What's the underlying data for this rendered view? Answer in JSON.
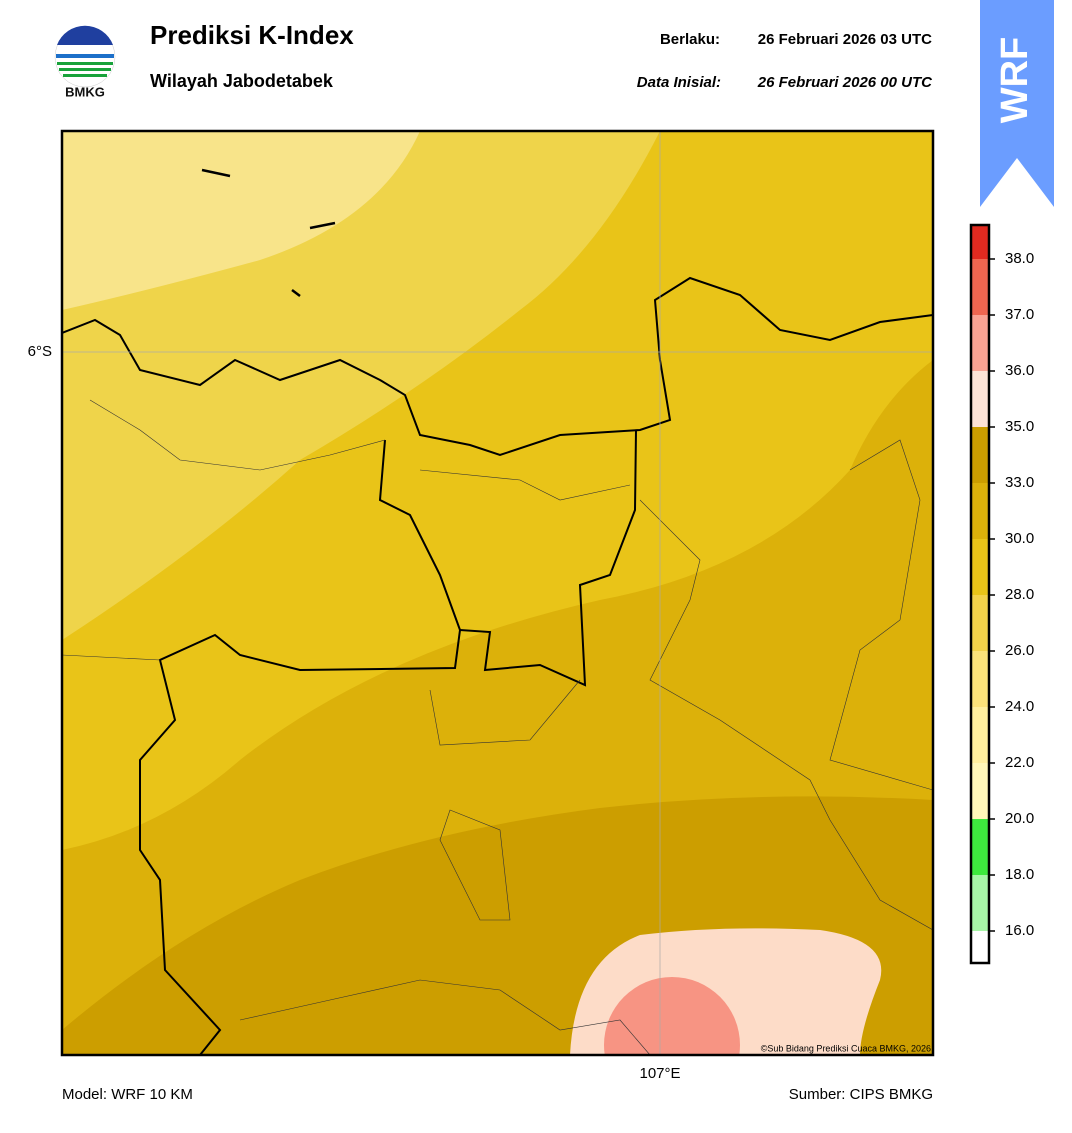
{
  "header": {
    "title": "Prediksi K-Index",
    "subtitle": "Wilayah Jabodetabek",
    "logo_text": "BMKG",
    "valid_label": "Berlaku:",
    "valid_time": "26 Februari 2026 03 UTC",
    "init_label": "Data Inisial:",
    "init_time": "26 Februari 2026 00 UTC",
    "badge": "WRF"
  },
  "map": {
    "lat_label": "6°S",
    "lon_label": "107°E",
    "copyright": "©Sub Bidang Prediksi Cuaca BMKG, 2026"
  },
  "colorbar": {
    "ticks": [
      {
        "value": 16,
        "label": "16.0"
      },
      {
        "value": 18,
        "label": "18.0"
      },
      {
        "value": 20,
        "label": "20.0"
      },
      {
        "value": 22,
        "label": "22.0"
      },
      {
        "value": 24,
        "label": "24.0"
      },
      {
        "value": 26,
        "label": "26.0"
      },
      {
        "value": 28,
        "label": "28.0"
      },
      {
        "value": 30,
        "label": "30.0"
      },
      {
        "value": 33,
        "label": "33.0"
      },
      {
        "value": 35,
        "label": "35.0"
      },
      {
        "value": 36,
        "label": "36.0"
      },
      {
        "value": 37,
        "label": "37.0"
      },
      {
        "value": 38,
        "label": "38.0"
      }
    ],
    "colors": [
      "#ffffff",
      "#a6f5a6",
      "#3ee83e",
      "#fff7b8",
      "#ffef9e",
      "#fbe27a",
      "#f3d24a",
      "#e9c418",
      "#dcb10a",
      "#cc9e00",
      "#fde3d6",
      "#f9a393",
      "#ee6650",
      "#e02a20"
    ]
  },
  "footer": {
    "model": "Model: WRF 10 KM",
    "source": "Sumber: CIPS BMKG"
  }
}
